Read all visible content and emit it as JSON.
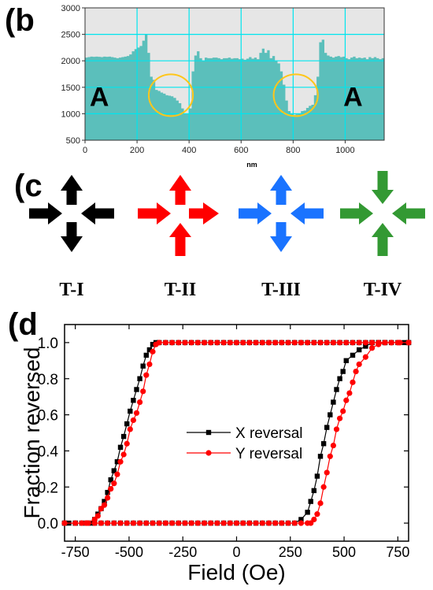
{
  "panels": {
    "b": {
      "label": "(b"
    },
    "c": {
      "label": "(c"
    },
    "d": {
      "label": "(d"
    }
  },
  "colors": {
    "profile_fill": "#5bbfbb",
    "plot_bg": "#e6e6e6",
    "grid": "#00e5ee",
    "circle": "#ffc61a",
    "black": "#000000",
    "red": "#ff0000",
    "blue": "#1a73ff",
    "green": "#339933",
    "series_x": "#000000",
    "series_y": "#ff0000"
  },
  "chart_data": [
    {
      "type": "area",
      "panel": "b",
      "xlabel": "nm",
      "ylabel": "",
      "xlim": [
        0,
        1150
      ],
      "ylim": [
        500,
        3000
      ],
      "xticks": [
        0,
        200,
        400,
        600,
        800,
        1000
      ],
      "yticks": [
        500,
        1000,
        1500,
        2000,
        2500,
        3000
      ],
      "grid": true,
      "annotations": [
        {
          "text": "A",
          "x": 55,
          "y": 1150
        },
        {
          "text": "A",
          "x": 1030,
          "y": 1150
        }
      ],
      "highlight_circles": [
        {
          "cx": 330,
          "cy": 1350,
          "rx": 85,
          "ry": 395
        },
        {
          "cx": 810,
          "cy": 1350,
          "rx": 85,
          "ry": 395
        }
      ],
      "x": [
        0,
        10,
        20,
        30,
        40,
        50,
        60,
        70,
        80,
        90,
        100,
        110,
        120,
        130,
        140,
        150,
        160,
        170,
        180,
        190,
        200,
        210,
        220,
        230,
        240,
        250,
        260,
        270,
        280,
        290,
        300,
        310,
        320,
        330,
        340,
        350,
        360,
        370,
        380,
        390,
        400,
        410,
        420,
        430,
        440,
        450,
        460,
        470,
        480,
        490,
        500,
        510,
        520,
        530,
        540,
        550,
        560,
        570,
        580,
        590,
        600,
        610,
        620,
        630,
        640,
        650,
        660,
        670,
        680,
        690,
        700,
        710,
        720,
        730,
        740,
        750,
        760,
        770,
        780,
        790,
        800,
        810,
        820,
        830,
        840,
        850,
        860,
        870,
        880,
        890,
        900,
        910,
        920,
        930,
        940,
        950,
        960,
        970,
        980,
        990,
        1000,
        1010,
        1020,
        1030,
        1040,
        1050,
        1060,
        1070,
        1080,
        1090,
        1100,
        1110,
        1120,
        1130,
        1140
      ],
      "y": [
        2060,
        2070,
        2080,
        2075,
        2080,
        2075,
        2070,
        2080,
        2075,
        2080,
        2070,
        2060,
        2050,
        2060,
        2070,
        2080,
        2090,
        2120,
        2180,
        2220,
        2250,
        2280,
        2380,
        2500,
        2150,
        1700,
        1640,
        1450,
        1430,
        1400,
        1380,
        1350,
        1340,
        1330,
        1300,
        1250,
        1200,
        1100,
        1000,
        1000,
        1100,
        1800,
        2100,
        2180,
        2050,
        2000,
        2060,
        2050,
        2050,
        2060,
        2060,
        2050,
        2030,
        2050,
        2050,
        2060,
        2040,
        2050,
        2050,
        2030,
        2040,
        2020,
        2040,
        2070,
        2040,
        2060,
        2030,
        2150,
        2230,
        2150,
        2200,
        2050,
        2090,
        2000,
        1950,
        1800,
        1550,
        1250,
        1050,
        1000,
        980,
        990,
        1000,
        1050,
        1060,
        1110,
        1150,
        1170,
        1350,
        1700,
        2350,
        2400,
        2150,
        2100,
        2080,
        2060,
        2080,
        2090,
        2070,
        2080,
        2050,
        2030,
        2060,
        2080,
        2050,
        2060,
        2050,
        2060,
        2030,
        2070,
        2050,
        2070,
        2050,
        2030,
        2050
      ]
    },
    {
      "type": "scatter",
      "panel": "d",
      "xlabel": "Field (Oe)",
      "ylabel": "Fraction reversed",
      "xlim": [
        -800,
        800
      ],
      "ylim": [
        -0.1,
        1.1
      ],
      "xticks": [
        -750,
        -500,
        -250,
        0,
        250,
        500,
        750
      ],
      "yticks": [
        0.0,
        0.2,
        0.4,
        0.6,
        0.8,
        1.0
      ],
      "ytick_labels": [
        "0.0",
        "0.2",
        "0.4",
        "0.6",
        "0.8",
        "1.0"
      ],
      "legend": {
        "placement": "center-left",
        "entries": [
          "X reversal",
          "Y reversal"
        ]
      },
      "series": [
        {
          "name": "X reversal",
          "marker": "square",
          "branches": [
            {
              "x": [
                800,
                690,
                660,
                630,
                600,
                570,
                540,
                510,
                495,
                480,
                465,
                450,
                435,
                420,
                405,
                390,
                375,
                360,
                345,
                330,
                300,
                270,
                240,
                210,
                180,
                150,
                120,
                90,
                60,
                30,
                0,
                -30,
                -60,
                -90,
                -120,
                -150,
                -180,
                -210,
                -240,
                -270,
                -300,
                -330,
                -360,
                -390,
                -420,
                -450,
                -480,
                -510,
                -540,
                -570,
                -600,
                -630,
                -660,
                -690,
                -720,
                -750,
                -780,
                -800
              ],
              "y": [
                1.0,
                1.0,
                1.0,
                1.0,
                0.98,
                0.96,
                0.93,
                0.9,
                0.84,
                0.8,
                0.74,
                0.67,
                0.6,
                0.53,
                0.44,
                0.37,
                0.26,
                0.18,
                0.12,
                0.06,
                0.02,
                0.0,
                0.0,
                0.0,
                0.0,
                0.0,
                0.0,
                0.0,
                0.0,
                0.0,
                0.0,
                0.0,
                0.0,
                0.0,
                0.0,
                0.0,
                0.0,
                0.0,
                0.0,
                0.0,
                0.0,
                0.0,
                0.0,
                0.0,
                0.0,
                0.0,
                0.0,
                0.0,
                0.0,
                0.0,
                0.0,
                0.0,
                0.0,
                0.0,
                0.0,
                0.0,
                0.0,
                0.0
              ]
            },
            {
              "x": [
                -800,
                -750,
                -700,
                -675,
                -660,
                -645,
                -630,
                -615,
                -600,
                -585,
                -570,
                -555,
                -540,
                -525,
                -510,
                -495,
                -480,
                -465,
                -450,
                -435,
                -420,
                -405,
                -390,
                -375,
                -360,
                -330,
                -300,
                -270,
                -240,
                -210,
                -180,
                -150,
                -120,
                -90,
                -60,
                -30,
                0,
                30,
                60,
                90,
                120,
                150,
                180,
                210,
                240,
                270,
                300,
                330,
                360,
                390,
                420,
                450,
                480,
                510,
                540,
                570,
                600,
                630,
                660,
                690,
                720,
                750,
                780,
                800
              ],
              "y": [
                0.0,
                0.0,
                0.0,
                0.0,
                0.02,
                0.05,
                0.08,
                0.12,
                0.17,
                0.24,
                0.29,
                0.34,
                0.42,
                0.48,
                0.55,
                0.62,
                0.68,
                0.74,
                0.8,
                0.87,
                0.93,
                0.96,
                0.99,
                1.0,
                1.0,
                1.0,
                1.0,
                1.0,
                1.0,
                1.0,
                1.0,
                1.0,
                1.0,
                1.0,
                1.0,
                1.0,
                1.0,
                1.0,
                1.0,
                1.0,
                1.0,
                1.0,
                1.0,
                1.0,
                1.0,
                1.0,
                1.0,
                1.0,
                1.0,
                1.0,
                1.0,
                1.0,
                1.0,
                1.0,
                1.0,
                1.0,
                1.0,
                1.0,
                1.0,
                1.0,
                1.0,
                1.0,
                1.0,
                1.0
              ]
            }
          ]
        },
        {
          "name": "Y reversal",
          "marker": "circle",
          "branches": [
            {
              "x": [
                800,
                760,
                720,
                690,
                660,
                630,
                600,
                570,
                555,
                540,
                525,
                510,
                495,
                480,
                465,
                450,
                435,
                420,
                405,
                390,
                375,
                360,
                345,
                330,
                300,
                270,
                240,
                210,
                180,
                150,
                120,
                90,
                60,
                30,
                0,
                -30,
                -60,
                -90,
                -120,
                -150,
                -180,
                -210,
                -240,
                -270,
                -300,
                -330,
                -360,
                -390,
                -420,
                -450,
                -480,
                -510,
                -540,
                -570,
                -600,
                -630,
                -660,
                -690,
                -720,
                -750,
                -800
              ],
              "y": [
                1.0,
                1.0,
                1.0,
                1.0,
                0.99,
                0.97,
                0.92,
                0.88,
                0.84,
                0.78,
                0.72,
                0.68,
                0.62,
                0.58,
                0.52,
                0.43,
                0.37,
                0.28,
                0.2,
                0.11,
                0.05,
                0.02,
                0.0,
                0.0,
                0.0,
                0.0,
                0.0,
                0.0,
                0.0,
                0.0,
                0.0,
                0.0,
                0.0,
                0.0,
                0.0,
                0.0,
                0.0,
                0.0,
                0.0,
                0.0,
                0.0,
                0.0,
                0.0,
                0.0,
                0.0,
                0.0,
                0.0,
                0.0,
                0.0,
                0.0,
                0.0,
                0.0,
                0.0,
                0.0,
                0.0,
                0.0,
                0.0,
                0.0,
                0.0,
                0.0,
                0.0
              ]
            },
            {
              "x": [
                -800,
                -700,
                -660,
                -645,
                -630,
                -615,
                -600,
                -585,
                -570,
                -555,
                -540,
                -525,
                -510,
                -495,
                -480,
                -465,
                -450,
                -435,
                -420,
                -405,
                -390,
                -375,
                -360,
                -330,
                -300,
                -270,
                -240,
                -210,
                -180,
                -150,
                -120,
                -90,
                -60,
                -30,
                0,
                30,
                60,
                90,
                120,
                150,
                180,
                210,
                240,
                270,
                300,
                330,
                360,
                390,
                420,
                450,
                480,
                510,
                540,
                570,
                600,
                630,
                660,
                690,
                720,
                750,
                800
              ],
              "y": [
                0.0,
                0.0,
                0.02,
                0.04,
                0.08,
                0.1,
                0.14,
                0.19,
                0.22,
                0.27,
                0.34,
                0.38,
                0.44,
                0.52,
                0.57,
                0.61,
                0.67,
                0.73,
                0.82,
                0.88,
                0.95,
                0.99,
                1.0,
                1.0,
                1.0,
                1.0,
                1.0,
                1.0,
                1.0,
                1.0,
                1.0,
                1.0,
                1.0,
                1.0,
                1.0,
                1.0,
                1.0,
                1.0,
                1.0,
                1.0,
                1.0,
                1.0,
                1.0,
                1.0,
                1.0,
                1.0,
                1.0,
                1.0,
                1.0,
                1.0,
                1.0,
                1.0,
                1.0,
                1.0,
                1.0,
                1.0,
                1.0,
                1.0,
                1.0,
                1.0,
                1.0
              ]
            }
          ]
        }
      ]
    }
  ],
  "arrow_groups": [
    {
      "id": "t1",
      "label": "T-I",
      "color_key": "black",
      "up": "out",
      "down": "out",
      "left": "in",
      "right": "in"
    },
    {
      "id": "t2",
      "label": "T-II",
      "color_key": "red",
      "up": "out",
      "down": "in",
      "left": "in",
      "right": "out"
    },
    {
      "id": "t3",
      "label": "T-III",
      "color_key": "blue",
      "up": "out",
      "down": "out",
      "left": "in",
      "right": "in"
    },
    {
      "id": "t4",
      "label": "T-IV",
      "color_key": "green",
      "up": "in",
      "down": "in",
      "left": "in",
      "right": "in"
    }
  ]
}
